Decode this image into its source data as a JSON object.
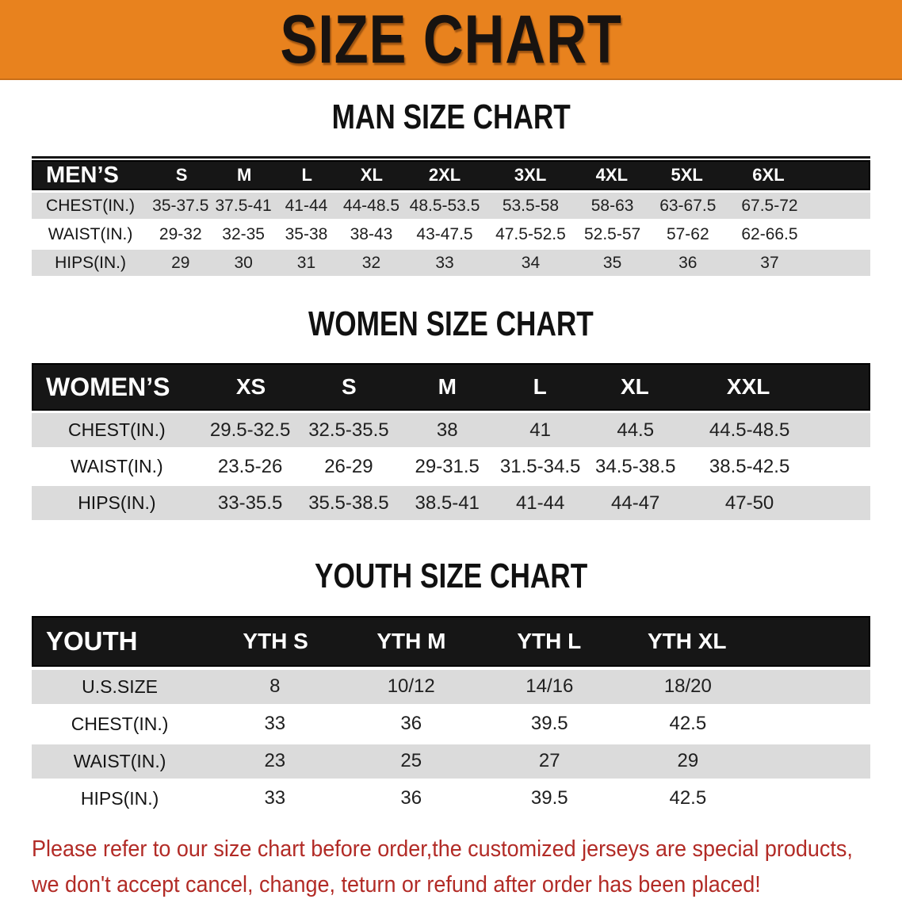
{
  "banner": {
    "title": "SIZE CHART",
    "bg_color": "#E8821E"
  },
  "sections": [
    {
      "heading": "MAN SIZE CHART",
      "table": {
        "header_label": "MEN’S",
        "columns": [
          "S",
          "M",
          "L",
          "XL",
          "2XL",
          "3XL",
          "4XL",
          "5XL",
          "6XL"
        ],
        "rows": [
          {
            "label": "CHEST(IN.)",
            "values": [
              "35-37.5",
              "37.5-41",
              "41-44",
              "44-48.5",
              "48.5-53.5",
              "53.5-58",
              "58-63",
              "63-67.5",
              "67.5-72"
            ]
          },
          {
            "label": "WAIST(IN.)",
            "values": [
              "29-32",
              "32-35",
              "35-38",
              "38-43",
              "43-47.5",
              "47.5-52.5",
              "52.5-57",
              "57-62",
              "62-66.5"
            ]
          },
          {
            "label": "HIPS(IN.)",
            "values": [
              "29",
              "30",
              "31",
              "32",
              "33",
              "34",
              "35",
              "36",
              "37"
            ]
          }
        ]
      }
    },
    {
      "heading": "WOMEN SIZE CHART",
      "table": {
        "header_label": "WOMEN’S",
        "columns": [
          "XS",
          "S",
          "M",
          "L",
          "XL",
          "XXL"
        ],
        "rows": [
          {
            "label": "CHEST(IN.)",
            "values": [
              "29.5-32.5",
              "32.5-35.5",
              "38",
              "41",
              "44.5",
              "44.5-48.5"
            ]
          },
          {
            "label": "WAIST(IN.)",
            "values": [
              "23.5-26",
              "26-29",
              "29-31.5",
              "31.5-34.5",
              "34.5-38.5",
              "38.5-42.5"
            ]
          },
          {
            "label": "HIPS(IN.)",
            "values": [
              "33-35.5",
              "35.5-38.5",
              "38.5-41",
              "41-44",
              "44-47",
              "47-50"
            ]
          }
        ]
      }
    },
    {
      "heading": "YOUTH SIZE CHART",
      "table": {
        "header_label": "YOUTH",
        "columns": [
          "YTH S",
          "YTH M",
          "YTH L",
          "YTH XL"
        ],
        "rows": [
          {
            "label": "U.S.SIZE",
            "values": [
              "8",
              "10/12",
              "14/16",
              "18/20"
            ]
          },
          {
            "label": "CHEST(IN.)",
            "values": [
              "33",
              "36",
              "39.5",
              "42.5"
            ]
          },
          {
            "label": "WAIST(IN.)",
            "values": [
              "23",
              "25",
              "27",
              "29"
            ]
          },
          {
            "label": "HIPS(IN.)",
            "values": [
              "33",
              "36",
              "39.5",
              "42.5"
            ]
          }
        ]
      }
    }
  ],
  "disclaimer": {
    "color": "#B22B26",
    "lines": [
      "Please refer to our size chart before order,the customized jerseys are special products,",
      "we don't accept cancel, change, teturn or refund after order has been placed!"
    ]
  }
}
